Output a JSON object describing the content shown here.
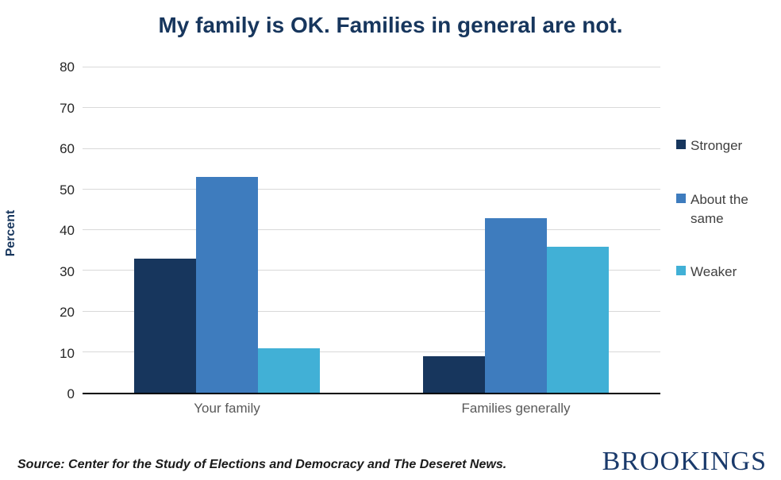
{
  "title": "My family is OK. Families in general are not.",
  "y_axis_title": "Percent",
  "source": "Source: Center for the Study of Elections and Democracy and The Deseret News.",
  "brand": "BROOKINGS",
  "colors": {
    "title": "#17365d",
    "grid": "#d9d9d9",
    "axis_line": "#000000",
    "brand": "#1a3a6b",
    "stronger": "#17365d",
    "about_the_same": "#3e7cbe",
    "weaker": "#41b0d6"
  },
  "chart_data": {
    "type": "bar",
    "categories": [
      "Your family",
      "Families generally"
    ],
    "series": [
      {
        "name": "Stronger",
        "values": [
          33,
          9
        ],
        "color": "#17365d"
      },
      {
        "name": "About the same",
        "values": [
          53,
          43
        ],
        "color": "#3e7cbe"
      },
      {
        "name": "Weaker",
        "values": [
          11,
          36
        ],
        "color": "#41b0d6"
      }
    ],
    "title": "My family is OK. Families in general are not.",
    "xlabel": "",
    "ylabel": "Percent",
    "ylim": [
      0,
      80
    ],
    "ytick_step": 10,
    "grid": true,
    "legend_position": "right"
  }
}
